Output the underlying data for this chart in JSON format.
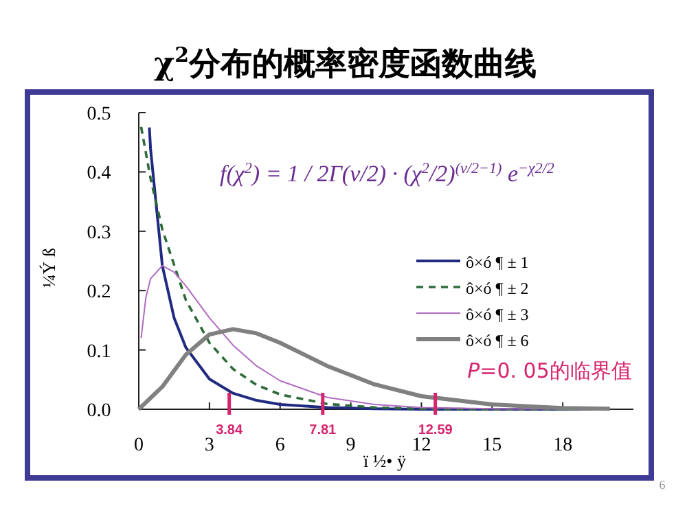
{
  "chart_data": {
    "type": "line",
    "title": "χ$^{2}$分布的概率密度函数曲线",
    "xlabel": "ï ½• ÿ",
    "ylabel": "¼Ý ß",
    "xlim": [
      0,
      21
    ],
    "ylim": [
      0,
      0.5
    ],
    "xticks": [
      0,
      3,
      6,
      9,
      12,
      15,
      18
    ],
    "yticks": [
      {
        "value": 0,
        "label": "0.0"
      },
      {
        "value": 0.1,
        "label": "0.1"
      },
      {
        "value": 0.2,
        "label": "0.2"
      },
      {
        "value": 0.3,
        "label": "0.3"
      },
      {
        "value": 0.4,
        "label": "0.4"
      },
      {
        "value": 0.5,
        "label": "0.5"
      }
    ],
    "legend": "right",
    "marker": "none",
    "series": [
      {
        "name": "ô×ó ¶ ± 1",
        "color": "#1f2a80",
        "line_style": "solid",
        "x": [
          0.45,
          0.5,
          1,
          1.5,
          2,
          3,
          4,
          5,
          6,
          8,
          10,
          12,
          15,
          20
        ],
        "values": [
          0.475,
          0.439,
          0.242,
          0.154,
          0.104,
          0.051,
          0.027,
          0.015,
          0.008,
          0.003,
          0.001,
          0,
          0,
          0
        ]
      },
      {
        "name": "ô×ó ¶ ± 2",
        "color": "#2e6b3a",
        "line_style": "dashed",
        "x": [
          0.1,
          0.5,
          1,
          2,
          3,
          4,
          5,
          6,
          8,
          10,
          12,
          15,
          20
        ],
        "values": [
          0.476,
          0.389,
          0.303,
          0.184,
          0.112,
          0.068,
          0.041,
          0.025,
          0.009,
          0.003,
          0.001,
          0,
          0
        ]
      },
      {
        "name": "ô×ó ¶ ± 3",
        "color": "#b06cc0",
        "line_style": "solid",
        "x": [
          0.1,
          0.3,
          0.5,
          1,
          1.5,
          2,
          3,
          4,
          5,
          6,
          8,
          10,
          12,
          15,
          20
        ],
        "values": [
          0.12,
          0.188,
          0.22,
          0.242,
          0.231,
          0.208,
          0.154,
          0.108,
          0.073,
          0.048,
          0.02,
          0.008,
          0.003,
          0.001,
          0
        ]
      },
      {
        "name": "ô×ó ¶ ± 6",
        "color": "#808080",
        "line_style": "solid",
        "x": [
          0,
          1,
          2,
          3,
          4,
          5,
          6,
          8,
          10,
          12,
          15,
          18,
          20
        ],
        "values": [
          0,
          0.038,
          0.092,
          0.126,
          0.135,
          0.128,
          0.112,
          0.073,
          0.042,
          0.022,
          0.008,
          0.002,
          0.001
        ]
      }
    ],
    "ref_lines": [
      {
        "axis": "x",
        "value": 3.84,
        "label": "3.84",
        "color": "#d6246e"
      },
      {
        "axis": "x",
        "value": 7.81,
        "label": "7.81",
        "color": "#d6246e"
      },
      {
        "axis": "x",
        "value": 12.59,
        "label": "12.59",
        "color": "#d6246e"
      }
    ],
    "annotations": [
      "f(χ$^{2}$) = 1 / 2Γ(ν/2) · (χ$^{2}$/2)$^{(ν/2−1)}$ e$^{−χ2/2}$",
      "*P*=0. 05的临界值",
      "6"
    ]
  }
}
